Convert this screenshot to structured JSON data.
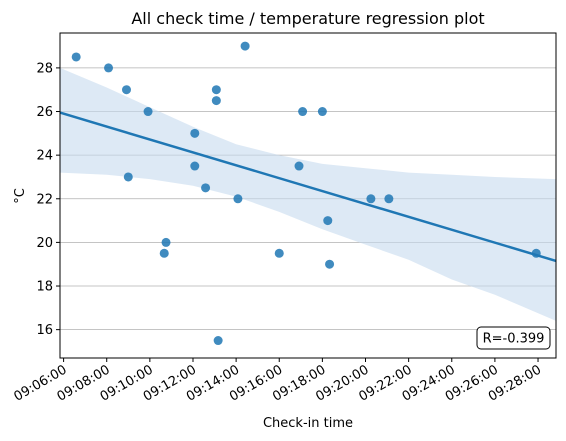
{
  "chart_data": {
    "type": "scatter",
    "title": "All check time / temperature regression plot",
    "xlabel": "Check-in time",
    "ylabel": "°C",
    "x_ticks": [
      "09:06:00",
      "09:08:00",
      "09:10:00",
      "09:12:00",
      "09:14:00",
      "09:16:00",
      "09:18:00",
      "09:20:00",
      "09:22:00",
      "09:24:00",
      "09:26:00",
      "09:28:00"
    ],
    "y_ticks": [
      16,
      18,
      20,
      22,
      24,
      26,
      28
    ],
    "xlim": [
      "09:05:50",
      "09:28:50"
    ],
    "ylim": [
      14.7,
      29.6
    ],
    "grid": "horizontal",
    "annotation": "R=-0.399",
    "annotation_position": "bottom-right",
    "colors": {
      "points": "#1f77b4",
      "line": "#1f77b4",
      "band": "#c6dbef"
    },
    "points": [
      {
        "x": "09:06:35",
        "y": 28.5
      },
      {
        "x": "09:08:05",
        "y": 28
      },
      {
        "x": "09:08:55",
        "y": 27
      },
      {
        "x": "09:09:00",
        "y": 23
      },
      {
        "x": "09:09:55",
        "y": 26
      },
      {
        "x": "09:10:40",
        "y": 19.5
      },
      {
        "x": "09:10:45",
        "y": 20
      },
      {
        "x": "09:12:05",
        "y": 25
      },
      {
        "x": "09:12:05",
        "y": 23.5
      },
      {
        "x": "09:12:35",
        "y": 22.5
      },
      {
        "x": "09:13:05",
        "y": 27
      },
      {
        "x": "09:13:05",
        "y": 26.5
      },
      {
        "x": "09:13:10",
        "y": 15.5
      },
      {
        "x": "09:14:05",
        "y": 22
      },
      {
        "x": "09:14:25",
        "y": 29
      },
      {
        "x": "09:16:00",
        "y": 19.5
      },
      {
        "x": "09:16:55",
        "y": 23.5
      },
      {
        "x": "09:17:05",
        "y": 26
      },
      {
        "x": "09:18:00",
        "y": 26
      },
      {
        "x": "09:18:15",
        "y": 21
      },
      {
        "x": "09:18:20",
        "y": 19
      },
      {
        "x": "09:20:15",
        "y": 22
      },
      {
        "x": "09:21:05",
        "y": 22
      },
      {
        "x": "09:27:55",
        "y": 19.5
      }
    ],
    "regression": {
      "line": [
        {
          "x": "09:05:50",
          "y": 25.95
        },
        {
          "x": "09:28:50",
          "y": 19.15
        }
      ],
      "ci_upper": [
        {
          "x": "09:05:50",
          "y": 28.0
        },
        {
          "x": "09:08:00",
          "y": 27.1
        },
        {
          "x": "09:10:00",
          "y": 26.2
        },
        {
          "x": "09:12:00",
          "y": 25.3
        },
        {
          "x": "09:14:00",
          "y": 24.5
        },
        {
          "x": "09:16:00",
          "y": 24.0
        },
        {
          "x": "09:18:00",
          "y": 23.6
        },
        {
          "x": "09:20:00",
          "y": 23.4
        },
        {
          "x": "09:22:00",
          "y": 23.2
        },
        {
          "x": "09:24:00",
          "y": 23.1
        },
        {
          "x": "09:26:00",
          "y": 23.0
        },
        {
          "x": "09:28:50",
          "y": 22.9
        }
      ],
      "ci_lower": [
        {
          "x": "09:05:50",
          "y": 23.2
        },
        {
          "x": "09:08:00",
          "y": 23.1
        },
        {
          "x": "09:10:00",
          "y": 22.9
        },
        {
          "x": "09:12:00",
          "y": 22.6
        },
        {
          "x": "09:14:00",
          "y": 22.1
        },
        {
          "x": "09:16:00",
          "y": 21.4
        },
        {
          "x": "09:18:00",
          "y": 20.6
        },
        {
          "x": "09:20:00",
          "y": 19.9
        },
        {
          "x": "09:22:00",
          "y": 19.2
        },
        {
          "x": "09:24:00",
          "y": 18.3
        },
        {
          "x": "09:26:00",
          "y": 17.6
        },
        {
          "x": "09:28:50",
          "y": 16.4
        }
      ]
    }
  }
}
